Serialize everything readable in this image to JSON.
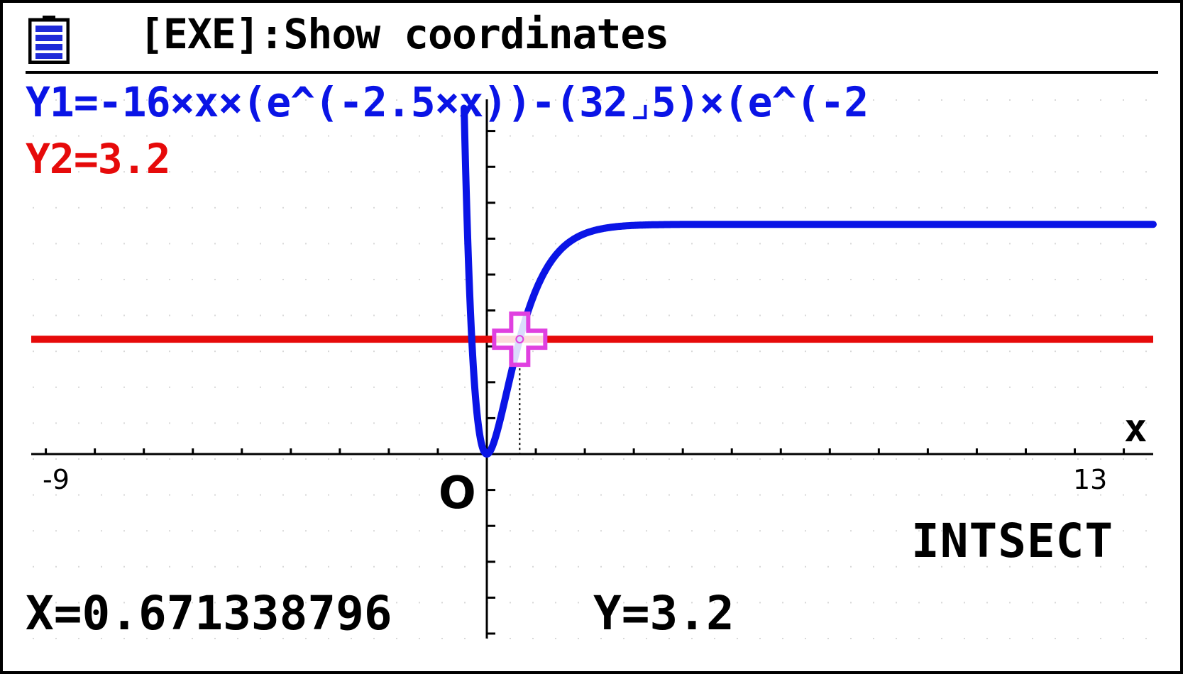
{
  "status_bar": {
    "battery_icon": "battery-icon",
    "message": "[EXE]:Show coordinates"
  },
  "functions": {
    "y1": "Y1=-16×x×(e^(-2.5×x))-(32⌟5)×(e^(-2",
    "y2": "Y2=3.2",
    "y1_color": "#0a14e6",
    "y2_color": "#e60a0a"
  },
  "graph": {
    "mode_label": "INTSECT",
    "x_axis_label": "x",
    "origin_label": "O",
    "x_min_label": "-9",
    "x_max_label": "13",
    "cursor_color": "#e040e0"
  },
  "readout": {
    "x": "X=0.671338796",
    "y": "Y=3.2"
  },
  "chart_data": {
    "type": "line",
    "title": "",
    "xlabel": "x",
    "ylabel": "",
    "xlim": [
      -9,
      13
    ],
    "series": [
      {
        "name": "Y1",
        "expression": "-16·x·e^(-2.5x) - (32/5)·e^(-2.5x) + 6.4"
      },
      {
        "name": "Y2",
        "expression": "3.2"
      }
    ],
    "intersection": {
      "x": 0.671338796,
      "y": 3.2
    }
  }
}
